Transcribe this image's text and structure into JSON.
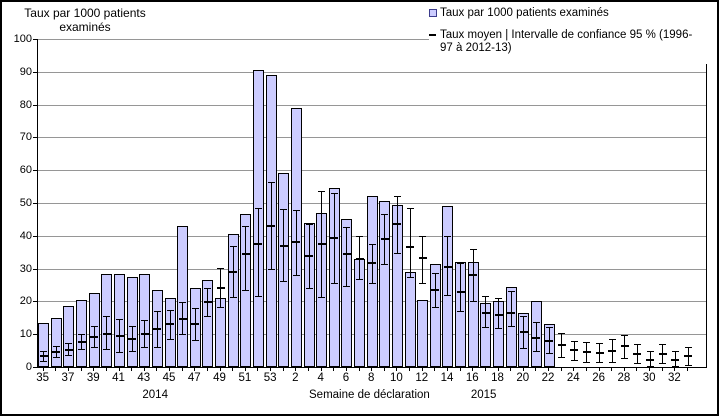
{
  "colors": {
    "background": "#FFFFFF",
    "outer_border": "#000000",
    "bar_fill": "#CCCCFF",
    "bar_border": "#000000",
    "gridline": "#969696",
    "errorbar": "#000000",
    "legend_square_border": "#3C3C8C"
  },
  "legend": {
    "bars_label": "Taux par 1000 patients examinés",
    "mean_label": "Taux moyen | Intervalle de confiance 95 % (1996-97 à 2012-13)"
  },
  "chart_data": {
    "type": "bar",
    "title": "Taux par 1000 patients examinés",
    "ylabel": "Taux par 1000 patients examinés",
    "xlabel": "Semaine de déclaration",
    "ylim": [
      0,
      100
    ],
    "ytick_interval": 10,
    "yticks": [
      0,
      10,
      20,
      30,
      40,
      50,
      60,
      70,
      80,
      90,
      100
    ],
    "grid": "horizontal",
    "legend_position": "top-right",
    "x_tick_labels": [
      "35",
      "37",
      "39",
      "41",
      "43",
      "45",
      "47",
      "49",
      "51",
      "53",
      "2",
      "4",
      "6",
      "8",
      "10",
      "12",
      "14",
      "16",
      "18",
      "20",
      "22",
      "24",
      "26",
      "28",
      "30",
      "32"
    ],
    "year_groups": [
      {
        "label": "2014",
        "start_index": 0,
        "end_index": 18
      },
      {
        "label": "2015",
        "start_index": 19,
        "end_index": 51
      }
    ],
    "series": [
      {
        "name": "Taux par 1000 patients examinés",
        "type": "bar",
        "color": "#CCCCFF"
      },
      {
        "name": "Taux moyen | Intervalle de confiance 95 % (1996-97 à 2012-13)",
        "type": "errorbar",
        "color": "#000000"
      }
    ],
    "points": [
      {
        "year": 2014,
        "week": "35",
        "taux": 13.5,
        "moyen": 3.3,
        "ci_low": 1.8,
        "ci_high": 5.0
      },
      {
        "year": 2014,
        "week": "36",
        "taux": 15.0,
        "moyen": 4.5,
        "ci_low": 3.0,
        "ci_high": 6.5
      },
      {
        "year": 2014,
        "week": "37",
        "taux": 18.5,
        "moyen": 5.3,
        "ci_low": 3.8,
        "ci_high": 7.2
      },
      {
        "year": 2014,
        "week": "38",
        "taux": 20.5,
        "moyen": 7.5,
        "ci_low": 5.5,
        "ci_high": 10.0
      },
      {
        "year": 2014,
        "week": "39",
        "taux": 22.5,
        "moyen": 9.0,
        "ci_low": 6.0,
        "ci_high": 12.5
      },
      {
        "year": 2014,
        "week": "40",
        "taux": 28.5,
        "moyen": 10.0,
        "ci_low": 5.5,
        "ci_high": 15.5
      },
      {
        "year": 2014,
        "week": "41",
        "taux": 28.5,
        "moyen": 9.6,
        "ci_low": 4.5,
        "ci_high": 14.7
      },
      {
        "year": 2014,
        "week": "42",
        "taux": 27.5,
        "moyen": 8.5,
        "ci_low": 5.0,
        "ci_high": 12.5
      },
      {
        "year": 2014,
        "week": "43",
        "taux": 28.5,
        "moyen": 10.0,
        "ci_low": 6.0,
        "ci_high": 14.2
      },
      {
        "year": 2014,
        "week": "44",
        "taux": 23.5,
        "moyen": 11.5,
        "ci_low": 6.0,
        "ci_high": 17.0
      },
      {
        "year": 2014,
        "week": "45",
        "taux": 21.0,
        "moyen": 13.0,
        "ci_low": 8.5,
        "ci_high": 17.5
      },
      {
        "year": 2014,
        "week": "46",
        "taux": 43.0,
        "moyen": 14.7,
        "ci_low": 10.0,
        "ci_high": 19.8
      },
      {
        "year": 2014,
        "week": "47",
        "taux": 24.0,
        "moyen": 13.2,
        "ci_low": 8.3,
        "ci_high": 18.0
      },
      {
        "year": 2014,
        "week": "48",
        "taux": 26.5,
        "moyen": 19.8,
        "ci_low": 15.5,
        "ci_high": 24.2
      },
      {
        "year": 2014,
        "week": "49",
        "taux": 21.0,
        "moyen": 24.2,
        "ci_low": 18.3,
        "ci_high": 30.3
      },
      {
        "year": 2014,
        "week": "50",
        "taux": 40.5,
        "moyen": 29.0,
        "ci_low": 21.3,
        "ci_high": 37.0
      },
      {
        "year": 2014,
        "week": "51",
        "taux": 46.5,
        "moyen": 34.4,
        "ci_low": 23.6,
        "ci_high": 43.0
      },
      {
        "year": 2014,
        "week": "52",
        "taux": 90.5,
        "moyen": 37.4,
        "ci_low": 21.6,
        "ci_high": 48.4
      },
      {
        "year": 2014,
        "week": "53",
        "taux": 89.0,
        "moyen": 43.0,
        "ci_low": 29.8,
        "ci_high": 56.5
      },
      {
        "year": 2015,
        "week": "1",
        "taux": 59.0,
        "moyen": 36.9,
        "ci_low": 26.2,
        "ci_high": 48.1
      },
      {
        "year": 2015,
        "week": "2",
        "taux": 79.0,
        "moyen": 38.1,
        "ci_low": 27.9,
        "ci_high": 47.8
      },
      {
        "year": 2015,
        "week": "3",
        "taux": 44.0,
        "moyen": 33.7,
        "ci_low": 24.0,
        "ci_high": 43.5
      },
      {
        "year": 2015,
        "week": "4",
        "taux": 47.0,
        "moyen": 37.6,
        "ci_low": 21.3,
        "ci_high": 53.8
      },
      {
        "year": 2015,
        "week": "5",
        "taux": 54.5,
        "moyen": 39.3,
        "ci_low": 25.7,
        "ci_high": 53.0
      },
      {
        "year": 2015,
        "week": "6",
        "taux": 45.0,
        "moyen": 34.5,
        "ci_low": 24.8,
        "ci_high": 42.8
      },
      {
        "year": 2015,
        "week": "7",
        "taux": 33.0,
        "moyen": 33.0,
        "ci_low": 26.8,
        "ci_high": 40.0
      },
      {
        "year": 2015,
        "week": "8",
        "taux": 52.0,
        "moyen": 31.6,
        "ci_low": 25.7,
        "ci_high": 37.4
      },
      {
        "year": 2015,
        "week": "9",
        "taux": 50.5,
        "moyen": 39.0,
        "ci_low": 31.4,
        "ci_high": 46.6
      },
      {
        "year": 2015,
        "week": "10",
        "taux": 49.5,
        "moyen": 43.5,
        "ci_low": 34.9,
        "ci_high": 52.2
      },
      {
        "year": 2015,
        "week": "11",
        "taux": 29.0,
        "moyen": 36.5,
        "ci_low": 27.5,
        "ci_high": 48.5
      },
      {
        "year": 2015,
        "week": "12",
        "taux": 20.5,
        "moyen": 33.3,
        "ci_low": 25.7,
        "ci_high": 40.0
      },
      {
        "year": 2015,
        "week": "13",
        "taux": 31.5,
        "moyen": 23.6,
        "ci_low": 18.3,
        "ci_high": 28.7
      },
      {
        "year": 2015,
        "week": "14",
        "taux": 49.0,
        "moyen": 30.5,
        "ci_low": 22.1,
        "ci_high": 40.0
      },
      {
        "year": 2015,
        "week": "15",
        "taux": 32.0,
        "moyen": 23.0,
        "ci_low": 17.0,
        "ci_high": 31.8
      },
      {
        "year": 2015,
        "week": "16",
        "taux": 32.0,
        "moyen": 27.9,
        "ci_low": 20.1,
        "ci_high": 36.1
      },
      {
        "year": 2015,
        "week": "17",
        "taux": 19.5,
        "moyen": 16.5,
        "ci_low": 12.1,
        "ci_high": 21.6
      },
      {
        "year": 2015,
        "week": "18",
        "taux": 20.0,
        "moyen": 16.0,
        "ci_low": 11.9,
        "ci_high": 21.1
      },
      {
        "year": 2015,
        "week": "19",
        "taux": 24.5,
        "moyen": 16.5,
        "ci_low": 12.4,
        "ci_high": 23.1
      },
      {
        "year": 2015,
        "week": "20",
        "taux": 16.5,
        "moyen": 10.6,
        "ci_low": 5.8,
        "ci_high": 15.7
      },
      {
        "year": 2015,
        "week": "21",
        "taux": 20.0,
        "moyen": 8.9,
        "ci_low": 4.8,
        "ci_high": 13.7
      },
      {
        "year": 2015,
        "week": "22",
        "taux": 13.0,
        "moyen": 7.9,
        "ci_low": 4.3,
        "ci_high": 12.1
      },
      {
        "year": 2015,
        "week": "23",
        "taux": null,
        "moyen": 6.6,
        "ci_low": 3.1,
        "ci_high": 10.4
      },
      {
        "year": 2015,
        "week": "24",
        "taux": null,
        "moyen": 5.1,
        "ci_low": 2.0,
        "ci_high": 8.0
      },
      {
        "year": 2015,
        "week": "25",
        "taux": null,
        "moyen": 4.5,
        "ci_low": 1.5,
        "ci_high": 7.6
      },
      {
        "year": 2015,
        "week": "26",
        "taux": null,
        "moyen": 4.3,
        "ci_low": 1.4,
        "ci_high": 7.3
      },
      {
        "year": 2015,
        "week": "27",
        "taux": null,
        "moyen": 5.0,
        "ci_low": 1.5,
        "ci_high": 8.6
      },
      {
        "year": 2015,
        "week": "28",
        "taux": null,
        "moyen": 6.3,
        "ci_low": 2.8,
        "ci_high": 9.9
      },
      {
        "year": 2015,
        "week": "29",
        "taux": null,
        "moyen": 4.1,
        "ci_low": 1.2,
        "ci_high": 7.0
      },
      {
        "year": 2015,
        "week": "30",
        "taux": null,
        "moyen": 2.2,
        "ci_low": 0.2,
        "ci_high": 5.0
      },
      {
        "year": 2015,
        "week": "31",
        "taux": null,
        "moyen": 4.1,
        "ci_low": 1.2,
        "ci_high": 7.1
      },
      {
        "year": 2015,
        "week": "32",
        "taux": null,
        "moyen": 2.2,
        "ci_low": 0.2,
        "ci_high": 4.8
      },
      {
        "year": 2015,
        "week": "33",
        "taux": null,
        "moyen": 3.3,
        "ci_low": 0.7,
        "ci_high": 6.0
      }
    ]
  }
}
